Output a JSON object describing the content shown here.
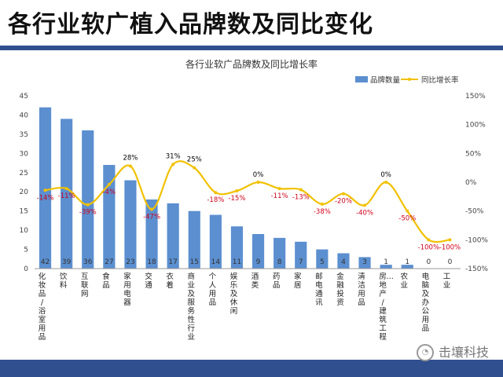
{
  "page": {
    "heading": "各行业软广植入品牌数及同比变化",
    "brand": "击壤科技",
    "watermark": "击壤科技"
  },
  "chart_data": {
    "type": "bar",
    "title": "各行业软广品牌数及同比增长率",
    "categories": [
      "化妆品/浴室用品",
      "饮料",
      "互联网",
      "食品",
      "家用电器",
      "交通",
      "衣着",
      "商业及服务性行业",
      "个人用品",
      "娱乐及休闲",
      "酒类",
      "药品",
      "家居",
      "邮电通讯",
      "金融投资",
      "清洁用品",
      "房地产/建筑工程行业",
      "农业",
      "电脑及办公用品",
      "工业"
    ],
    "category_labels": [
      "化妆品/浴室用品",
      "饮料",
      "互联网",
      "食品",
      "家用电器",
      "交通",
      "衣着",
      "商业及服务性行业",
      "个人用品",
      "娱乐及休闲",
      "酒类",
      "药品",
      "家居",
      "邮电通讯",
      "金融投资",
      "清洁用品",
      "房地产/建筑工程…",
      "农业",
      "电脑及办公用品",
      "工业"
    ],
    "series": [
      {
        "name": "品牌数量",
        "type": "bar",
        "axis": "left",
        "color": "#5b8fd0",
        "values": [
          42,
          39,
          36,
          27,
          23,
          18,
          17,
          15,
          14,
          11,
          9,
          8,
          7,
          5,
          4,
          3,
          1,
          1,
          0,
          0
        ],
        "labels": [
          "42",
          "39",
          "36",
          "27",
          "23",
          "18",
          "17",
          "15",
          "14",
          "11",
          "9",
          "8",
          "7",
          "5",
          "4",
          "3",
          "1",
          "1",
          "0",
          "0"
        ]
      },
      {
        "name": "同比增长率",
        "type": "line",
        "axis": "right",
        "color": "#f2c100",
        "values": [
          -14,
          -11,
          -39,
          -4,
          28,
          -47,
          31,
          25,
          -18,
          -15,
          0,
          -11,
          -13,
          -38,
          -20,
          -40,
          0,
          -50,
          -100,
          -100
        ],
        "labels": [
          "-14%",
          "-11%",
          "-39%",
          "-4%",
          "28%",
          "-47%",
          "31%",
          "25%",
          "-18%",
          "-15%",
          "0%",
          "-11%",
          "-13%",
          "-38%",
          "-20%",
          "-40%",
          "0%",
          "-50%",
          "-100%",
          "-100%"
        ]
      }
    ],
    "ylim_left": [
      0,
      45
    ],
    "ylim_right": [
      -150,
      150
    ],
    "yticks_left": [
      "0",
      "5",
      "10",
      "15",
      "20",
      "25",
      "30",
      "35",
      "40",
      "45"
    ],
    "yticks_right": [
      "-150%",
      "-100%",
      "-50%",
      "0%",
      "50%",
      "100%",
      "150%"
    ],
    "legend_position": "top-right",
    "grid": false,
    "label_color_positive": "#000000",
    "label_color_negative": "#d0021b"
  }
}
